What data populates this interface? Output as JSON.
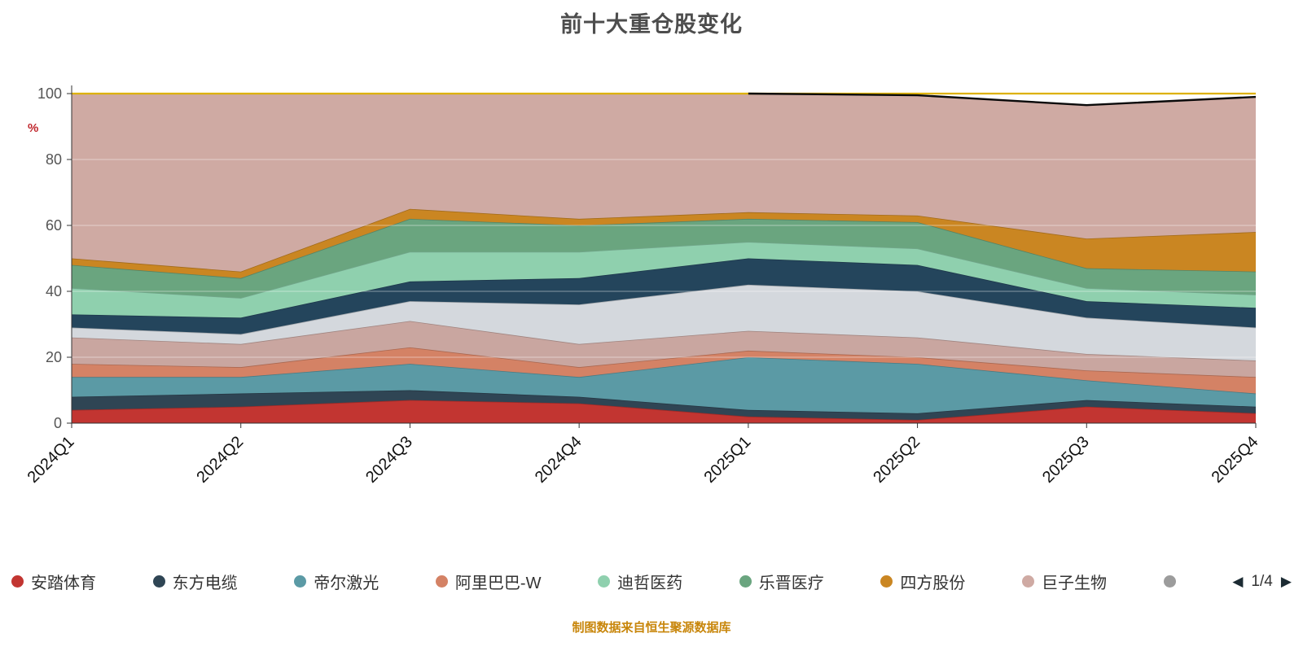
{
  "title": "前十大重仓股变化",
  "y_axis_unit": "%",
  "footer": "制图数据来自恒生聚源数据库",
  "legend": {
    "items": [
      {
        "label": "安踏体育",
        "color": "#c23531"
      },
      {
        "label": "东方电缆",
        "color": "#2f4554"
      },
      {
        "label": "帝尔激光",
        "color": "#5b9aa5"
      },
      {
        "label": "阿里巴巴-W",
        "color": "#d48265"
      },
      {
        "label": "迪哲医药",
        "color": "#8fd0ae"
      },
      {
        "label": "乐晋医疗",
        "color": "#6aa57f"
      },
      {
        "label": "四方股份",
        "color": "#ca8622"
      },
      {
        "label": "巨子生物",
        "color": "#cfaaa3"
      }
    ],
    "overflow_dot_color": "#9c9c9c",
    "pager": {
      "prev_icon": "◀",
      "current": "1/4",
      "next_icon": "▶"
    }
  },
  "chart_data": {
    "type": "area",
    "stacked": true,
    "title": "前十大重仓股变化",
    "ylabel": "%",
    "ylim": [
      0,
      100
    ],
    "yticks": [
      0,
      20,
      40,
      60,
      80,
      100
    ],
    "grid": true,
    "legend_position": "bottom",
    "categories": [
      "2024Q1",
      "2024Q2",
      "2024Q3",
      "2024Q4",
      "2025Q1",
      "2025Q2",
      "2025Q3",
      "2025Q4"
    ],
    "series": [
      {
        "name": "安踏体育",
        "color": "#c23531",
        "values": [
          4,
          5,
          7,
          6,
          2,
          1,
          5,
          3
        ]
      },
      {
        "name": "东方电缆",
        "color": "#2f4554",
        "values": [
          4,
          4,
          3,
          2,
          2,
          2,
          2,
          2
        ]
      },
      {
        "name": "帝尔激光",
        "color": "#5b9aa5",
        "values": [
          6,
          5,
          8,
          6,
          16,
          15,
          6,
          4
        ]
      },
      {
        "name": "阿里巴巴-W",
        "color": "#d48265",
        "values": [
          4,
          3,
          5,
          3,
          2,
          2,
          3,
          5
        ]
      },
      {
        "name": "",
        "color": "#c9a6a0",
        "values": [
          8,
          7,
          8,
          7,
          6,
          6,
          5,
          5
        ]
      },
      {
        "name": "",
        "color": "#d4d8dd",
        "values": [
          3,
          3,
          6,
          12,
          14,
          14,
          11,
          10
        ]
      },
      {
        "name": "",
        "color": "#24455c",
        "values": [
          4,
          5,
          6,
          8,
          8,
          8,
          5,
          6
        ]
      },
      {
        "name": "迪哲医药",
        "color": "#8fd0ae",
        "values": [
          8,
          6,
          9,
          8,
          5,
          5,
          4,
          4
        ]
      },
      {
        "name": "乐晋医疗",
        "color": "#6aa57f",
        "values": [
          7,
          6,
          10,
          8,
          7,
          8,
          6,
          7
        ]
      },
      {
        "name": "四方股份",
        "color": "#ca8622",
        "values": [
          2,
          2,
          3,
          2,
          2,
          2,
          9,
          12
        ]
      },
      {
        "name": "巨子生物",
        "color": "#cfaaa3",
        "values": [
          50,
          54,
          35,
          38,
          36,
          36.5,
          40.5,
          41
        ]
      }
    ],
    "top_edge_color": "#ddb100",
    "overlay_top_line": {
      "color": "#0a0a0a",
      "start_index": 4,
      "values": [
        100,
        99.5,
        96.5,
        99
      ]
    }
  }
}
